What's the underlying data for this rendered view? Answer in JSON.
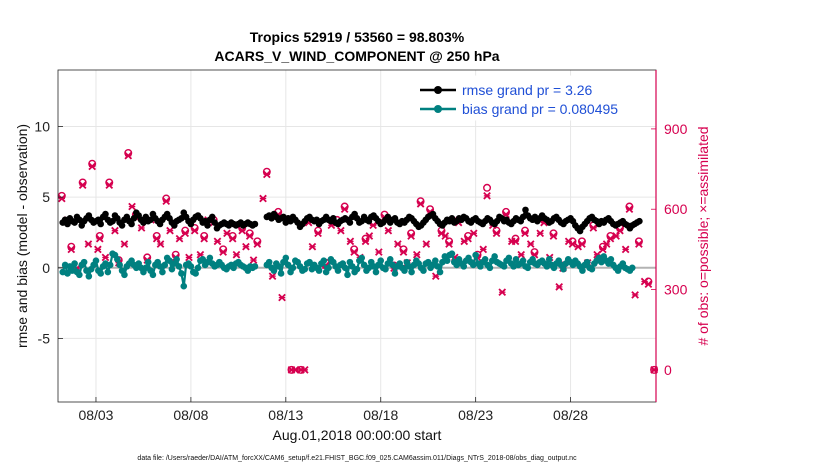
{
  "chart_data": {
    "type": "line",
    "title": "Tropics 52919 / 53560 = 98.803%",
    "subtitle": "ACARS_V_WIND_COMPONENT @ 250 hPa",
    "xlabel": "Aug.01,2018 00:00:00 start",
    "ylabel": "rmse and bias (model - observation)",
    "ylabel_right": "# of obs: o=possible; ×=assimilated",
    "footnote": "data file: /Users/raeder/DAI/ATM_forcXX/CAM6_setup/f.e21.FHIST_BGC.f09_025.CAM6assim.011/Diags_NTrS_2018-08/obs_diag_output.nc",
    "xlim": [
      0,
      31.5
    ],
    "ylim": [
      -9.5,
      14
    ],
    "ylim_right": [
      -120,
      1120
    ],
    "x_tick_labels": [
      "08/03",
      "08/08",
      "08/13",
      "08/18",
      "08/23",
      "08/28"
    ],
    "x_tick_days": [
      2,
      7,
      12,
      17,
      22,
      27
    ],
    "y_ticks_left": [
      -5,
      0,
      5,
      10
    ],
    "y_ticks_right": [
      0,
      300,
      600,
      900
    ],
    "grid": true,
    "legend_position": "top-right",
    "gap_days": [
      11.5,
      12.0
    ],
    "series": [
      {
        "name": "rmse grand pr = 3.26",
        "color": "#000000",
        "axis": "left",
        "values": [
          3.2,
          3.4,
          3.1,
          3.5,
          3.3,
          3.2,
          3.6,
          3.4,
          3.0,
          3.3,
          3.5,
          3.7,
          3.4,
          3.2,
          3.3,
          3.4,
          3.1,
          3.6,
          3.8,
          3.4,
          3.2,
          3.3,
          3.7,
          3.5,
          3.2,
          3.0,
          3.4,
          3.6,
          3.3,
          3.1,
          3.5,
          3.9,
          3.7,
          3.4,
          3.2,
          3.6,
          3.3,
          3.4,
          3.8,
          3.5,
          3.3,
          3.1,
          3.4,
          3.6,
          3.8,
          3.5,
          3.2,
          3.0,
          3.3,
          3.4,
          3.5,
          3.9,
          3.6,
          3.3,
          3.1,
          3.4,
          3.6,
          3.7,
          3.5,
          3.2,
          3.3,
          3.0,
          3.4,
          3.6,
          3.2,
          2.8,
          3.0,
          3.1,
          3.2,
          3.1,
          3.0,
          3.2,
          3.1,
          3.0,
          3.1,
          3.2,
          3.0,
          3.1,
          3.2,
          3.1,
          3.0,
          3.1,
          null,
          null,
          null,
          null,
          3.6,
          3.7,
          3.5,
          3.8,
          3.6,
          3.4,
          3.5,
          3.6,
          3.2,
          3.5,
          3.3,
          3.6,
          3.4,
          3.2,
          2.9,
          3.1,
          3.3,
          3.5,
          3.6,
          3.4,
          3.3,
          3.4,
          3.1,
          3.3,
          3.4,
          3.6,
          3.4,
          3.3,
          3.5,
          3.2,
          3.1,
          3.3,
          3.4,
          3.5,
          3.4,
          3.2,
          3.6,
          3.8,
          3.5,
          3.2,
          3.3,
          3.6,
          3.4,
          3.3,
          3.6,
          3.7,
          3.5,
          3.3,
          3.1,
          3.2,
          3.4,
          3.6,
          3.2,
          3.4,
          3.5,
          3.2,
          3.1,
          3.3,
          3.2,
          3.4,
          3.6,
          3.5,
          3.3,
          3.1,
          2.9,
          3.0,
          3.2,
          3.4,
          3.6,
          3.7,
          3.8,
          3.5,
          3.3,
          3.1,
          3.0,
          3.2,
          3.4,
          3.3,
          3.5,
          3.2,
          3.3,
          3.5,
          3.4,
          3.6,
          3.5,
          3.3,
          3.2,
          3.4,
          3.5,
          3.3,
          3.2,
          3.1,
          3.3,
          3.5,
          3.4,
          3.2,
          3.1,
          3.3,
          3.6,
          3.5,
          3.3,
          3.4,
          3.2,
          3.1,
          3.3,
          3.5,
          3.4,
          3.3,
          3.6,
          4.1,
          3.7,
          3.5,
          3.4,
          3.6,
          3.3,
          3.5,
          3.7,
          3.5,
          3.4,
          3.2,
          3.3,
          3.5,
          3.6,
          3.4,
          3.2,
          3.1,
          3.3,
          3.4,
          3.5,
          3.3,
          3.0,
          2.8,
          2.6,
          2.9,
          3.1,
          3.3,
          3.5,
          3.6,
          3.4,
          3.3,
          3.1,
          3.3,
          3.2,
          3.4,
          3.5,
          3.3,
          3.1,
          3.0,
          3.1,
          3.2,
          3.3,
          3.1,
          3.0,
          2.8,
          3.0,
          3.1,
          3.2,
          3.3
        ]
      },
      {
        "name": "bias grand pr = 0.080495",
        "color": "#008080",
        "axis": "left",
        "values": [
          -0.3,
          0.2,
          -0.4,
          0.1,
          -0.2,
          0.3,
          -0.3,
          -0.5,
          0.2,
          0.4,
          -0.2,
          -0.6,
          -0.1,
          0.2,
          0.5,
          -0.2,
          -0.4,
          0.1,
          0.3,
          -0.3,
          0.2,
          1.0,
          0.9,
          0.6,
          0.2,
          -0.2,
          -0.5,
          0.1,
          0.3,
          0.5,
          0.2,
          0.0,
          0.3,
          0.0,
          -0.3,
          0.0,
          0.4,
          -0.2,
          -0.5,
          0.2,
          0.4,
          0.1,
          -0.3,
          0.2,
          0.7,
          0.5,
          -0.1,
          0.3,
          0.6,
          0.1,
          -0.4,
          -1.3,
          0.2,
          0.3,
          0.1,
          -0.3,
          -0.4,
          0.0,
          0.5,
          0.6,
          0.2,
          0.4,
          0.7,
          0.3,
          0.1,
          0.2,
          0.4,
          0.2,
          0.0,
          -0.1,
          0.1,
          0.2,
          0.0,
          0.3,
          0.4,
          0.2,
          0.1,
          0.0,
          -0.2,
          0.1,
          0.0,
          0.1,
          null,
          null,
          null,
          null,
          0.2,
          0.4,
          0.0,
          -0.2,
          0.3,
          0.1,
          -0.4,
          0.4,
          0.7,
          0.2,
          -0.3,
          0.0,
          0.5,
          0.4,
          0.1,
          -0.2,
          -0.1,
          0.3,
          0.4,
          -0.1,
          0.2,
          0.0,
          -0.2,
          0.3,
          0.5,
          -0.3,
          0.0,
          0.6,
          0.4,
          0.1,
          -0.2,
          0.2,
          0.3,
          0.0,
          -0.5,
          0.4,
          0.1,
          -0.3,
          -0.1,
          0.5,
          0.7,
          0.2,
          -0.2,
          0.0,
          0.4,
          0.1,
          -0.3,
          0.2,
          0.5,
          0.0,
          -0.1,
          0.3,
          0.6,
          0.2,
          -0.4,
          0.1,
          0.3,
          0.0,
          -0.2,
          0.4,
          0.1,
          -0.3,
          0.2,
          0.5,
          0.3,
          0.0,
          -0.2,
          0.3,
          0.4,
          0.0,
          0.2,
          0.5,
          0.1,
          -0.3,
          0.4,
          0.8,
          0.5,
          0.9,
          1.0,
          0.4,
          0.2,
          0.6,
          0.3,
          0.1,
          0.5,
          0.7,
          0.4,
          0.2,
          0.9,
          0.3,
          0.1,
          0.4,
          0.6,
          0.2,
          0.0,
          0.5,
          0.8,
          0.4,
          0.3,
          0.2,
          0.1,
          0.5,
          0.7,
          0.3,
          0.1,
          0.6,
          0.2,
          0.3,
          0.5,
          0.1,
          0.0,
          0.4,
          0.6,
          0.3,
          0.2,
          0.4,
          0.5,
          0.3,
          0.1,
          0.6,
          0.2,
          0.0,
          0.3,
          0.5,
          0.2,
          -0.1,
          0.3,
          0.6,
          0.4,
          0.2,
          0.5,
          0.3,
          0.1,
          -0.2,
          0.2,
          0.4,
          0.0,
          -0.1,
          0.3,
          0.5,
          0.7,
          0.4,
          0.8,
          0.5,
          0.3,
          0.6,
          0.2,
          0.0,
          -0.2,
          0.1,
          0.3,
          0.0,
          -0.1,
          -0.2,
          0.0
        ]
      },
      {
        "name": "possible obs",
        "color": "#d6004f",
        "axis": "right",
        "marker": "circle",
        "x": [
          0.2,
          0.7,
          1.3,
          1.8,
          2.2,
          2.7,
          3.2,
          3.7,
          4.1,
          4.7,
          5.2,
          5.7,
          6.2,
          6.7,
          7.2,
          7.7,
          8.2,
          8.7,
          9.2,
          9.7,
          10.1,
          10.5,
          11.0,
          11.6,
          12.3,
          12.8,
          13.2,
          13.7,
          14.1,
          14.7,
          15.1,
          15.6,
          16.2,
          16.6,
          17.2,
          17.7,
          18.2,
          18.6,
          19.1,
          19.6,
          20.2,
          20.6,
          21.1,
          21.6,
          22.1,
          22.6,
          23.1,
          23.6,
          24.1,
          24.6,
          25.1,
          25.6,
          26.1,
          26.6,
          27.1,
          27.6,
          28.2,
          28.7,
          29.1,
          29.6,
          30.1,
          30.6,
          31.1,
          31.4
        ],
        "values": [
          650,
          460,
          700,
          770,
          500,
          700,
          410,
          810,
          580,
          420,
          500,
          640,
          430,
          520,
          530,
          500,
          560,
          450,
          500,
          530,
          510,
          480,
          740,
          590,
          0,
          0,
          560,
          520,
          400,
          560,
          610,
          450,
          490,
          550,
          580,
          390,
          450,
          510,
          630,
          600,
          520,
          480,
          560,
          500,
          430,
          680,
          520,
          590,
          490,
          520,
          440,
          560,
          510,
          390,
          480,
          480,
          540,
          460,
          500,
          530,
          610,
          480,
          330,
          0
        ]
      },
      {
        "name": "assimilated obs",
        "color": "#d6004f",
        "axis": "right",
        "marker": "x",
        "x": [
          0.2,
          0.7,
          1.3,
          1.8,
          2.2,
          2.7,
          3.2,
          3.7,
          4.1,
          4.7,
          5.2,
          5.7,
          6.2,
          6.7,
          7.2,
          7.7,
          8.2,
          8.7,
          9.2,
          9.7,
          10.1,
          10.5,
          11.0,
          11.6,
          12.3,
          12.8,
          13.2,
          13.7,
          14.1,
          14.7,
          15.1,
          15.6,
          16.2,
          16.6,
          17.2,
          17.7,
          18.2,
          18.6,
          19.1,
          19.6,
          20.2,
          20.6,
          21.1,
          21.6,
          22.1,
          22.6,
          23.1,
          23.6,
          24.1,
          24.6,
          25.1,
          25.6,
          26.1,
          26.6,
          27.1,
          27.6,
          28.2,
          28.7,
          29.1,
          29.6,
          30.1,
          30.6,
          31.1,
          31.4
        ],
        "values": [
          640,
          450,
          690,
          760,
          490,
          690,
          400,
          800,
          570,
          410,
          490,
          630,
          420,
          510,
          520,
          490,
          550,
          440,
          490,
          520,
          500,
          470,
          730,
          580,
          0,
          0,
          550,
          510,
          390,
          550,
          600,
          440,
          480,
          540,
          570,
          380,
          440,
          500,
          620,
          590,
          510,
          470,
          550,
          490,
          420,
          650,
          510,
          580,
          480,
          510,
          430,
          550,
          500,
          380,
          470,
          470,
          530,
          450,
          490,
          520,
          600,
          470,
          320,
          0
        ]
      }
    ],
    "extra_obs": {
      "x": [
        0.5,
        1.0,
        1.6,
        2.1,
        2.5,
        3.0,
        3.5,
        3.9,
        4.4,
        4.9,
        5.4,
        5.9,
        6.4,
        6.9,
        7.5,
        7.9,
        8.4,
        8.9,
        9.4,
        9.9,
        10.3,
        10.8,
        11.3,
        11.8,
        12.5,
        13.0,
        13.4,
        13.9,
        14.4,
        14.9,
        15.4,
        15.9,
        16.4,
        16.9,
        17.4,
        17.9,
        18.4,
        18.9,
        19.4,
        19.9,
        20.4,
        20.9,
        21.4,
        21.9,
        22.4,
        22.9,
        23.4,
        23.9,
        24.4,
        24.9,
        25.4,
        25.9,
        26.4,
        26.9,
        27.4,
        27.9,
        28.4,
        28.9,
        29.4,
        29.9,
        30.4,
        30.9
      ],
      "values": [
        560,
        380,
        470,
        450,
        420,
        520,
        470,
        610,
        530,
        560,
        470,
        520,
        490,
        420,
        430,
        560,
        480,
        510,
        430,
        460,
        410,
        640,
        350,
        270,
        0,
        0,
        460,
        390,
        540,
        520,
        480,
        420,
        500,
        440,
        520,
        470,
        400,
        430,
        470,
        350,
        500,
        420,
        480,
        510,
        450,
        540,
        290,
        480,
        430,
        470,
        510,
        420,
        310,
        480,
        460,
        400,
        430,
        470,
        500,
        450,
        280,
        330
      ]
    }
  }
}
